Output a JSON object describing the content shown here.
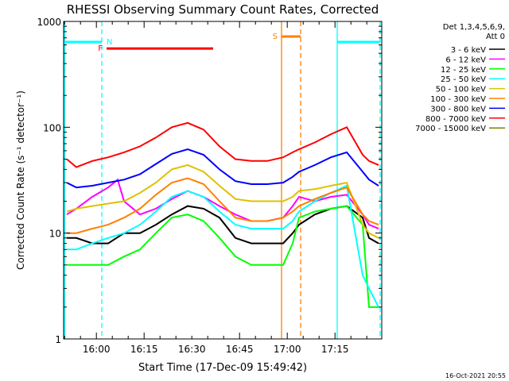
{
  "chart_data": {
    "type": "line",
    "title": "RHESSI Observing Summary Count Rates, Corrected",
    "xlabel": "Start Time (17-Dec-09 15:49:42)",
    "ylabel": "Corrected Count Rate (s⁻¹ detector⁻¹)",
    "x_units": "minutes after 15:49:42",
    "xlim": [
      0,
      100
    ],
    "ylim": [
      1,
      1000
    ],
    "yscale": "log",
    "x_ticks": [
      {
        "label": "16:00",
        "value": 10.3
      },
      {
        "label": "16:15",
        "value": 25.3
      },
      {
        "label": "16:30",
        "value": 40.3
      },
      {
        "label": "16:45",
        "value": 55.3
      },
      {
        "label": "17:00",
        "value": 70.3
      },
      {
        "label": "17:15",
        "value": 85.3
      }
    ],
    "y_ticks": [
      {
        "label": "1",
        "value": 1
      },
      {
        "label": "10",
        "value": 10
      },
      {
        "label": "100",
        "value": 100
      },
      {
        "label": "1000",
        "value": 1000
      }
    ],
    "legend": {
      "placement": "top-right",
      "header": [
        "Det 1,3,4,5,6,9,",
        "Att 0"
      ]
    },
    "series": [
      {
        "name": "3 - 6 keV",
        "color": "#000000",
        "x": [
          1,
          4,
          9,
          14,
          19,
          24,
          29,
          34,
          39,
          44,
          49,
          54,
          59,
          64,
          69,
          72,
          74,
          79,
          84,
          89,
          94,
          96,
          99
        ],
        "y": [
          9,
          9,
          8,
          8,
          10,
          10,
          12,
          15,
          18,
          17,
          14,
          9,
          8,
          8,
          8,
          10,
          12,
          15,
          17,
          18,
          14,
          9,
          8
        ]
      },
      {
        "name": "6 - 12 keV",
        "color": "#ff00ff",
        "x": [
          1,
          4,
          9,
          14,
          17,
          19,
          24,
          29,
          34,
          39,
          44,
          49,
          54,
          59,
          64,
          69,
          72,
          74,
          79,
          84,
          89,
          94,
          96,
          99
        ],
        "y": [
          15,
          17,
          22,
          27,
          32,
          20,
          15,
          17,
          21,
          25,
          22,
          18,
          15,
          13,
          13,
          14,
          18,
          22,
          20,
          22,
          23,
          15,
          12,
          11
        ]
      },
      {
        "name": "12 - 25 keV",
        "color": "#00ff00",
        "x": [
          1,
          4,
          9,
          14,
          19,
          24,
          29,
          34,
          39,
          44,
          49,
          54,
          59,
          64,
          69,
          72,
          74,
          79,
          84,
          89,
          94,
          96,
          99
        ],
        "y": [
          5,
          5,
          5,
          5,
          6,
          7,
          10,
          14,
          15,
          13,
          9,
          6,
          5,
          5,
          5,
          8,
          14,
          16,
          17,
          18,
          12,
          2,
          2
        ]
      },
      {
        "name": "25 - 50 keV",
        "color": "#00ffff",
        "x": [
          1,
          4,
          9,
          14,
          19,
          24,
          29,
          34,
          39,
          44,
          49,
          54,
          59,
          64,
          69,
          72,
          74,
          79,
          84,
          89,
          94,
          96,
          99
        ],
        "y": [
          7,
          7,
          8,
          9,
          10,
          12,
          16,
          22,
          25,
          22,
          16,
          12,
          11,
          11,
          11,
          13,
          16,
          20,
          24,
          28,
          4,
          3,
          2
        ]
      },
      {
        "name": "50 - 100 keV",
        "color": "#e0c000",
        "x": [
          1,
          4,
          9,
          14,
          19,
          24,
          29,
          34,
          39,
          44,
          49,
          54,
          59,
          64,
          69,
          72,
          74,
          79,
          84,
          89,
          94,
          96,
          99
        ],
        "y": [
          16,
          17,
          18,
          19,
          20,
          24,
          30,
          40,
          44,
          38,
          28,
          21,
          20,
          20,
          20,
          22,
          25,
          26,
          28,
          30,
          12,
          10,
          9
        ]
      },
      {
        "name": "100 - 300 keV",
        "color": "#ff8000",
        "x": [
          1,
          4,
          9,
          14,
          19,
          24,
          29,
          34,
          39,
          44,
          49,
          54,
          59,
          64,
          69,
          72,
          74,
          79,
          84,
          89,
          94,
          96,
          99
        ],
        "y": [
          10,
          10,
          11,
          12,
          14,
          17,
          23,
          30,
          33,
          29,
          20,
          14,
          13,
          13,
          14,
          16,
          18,
          21,
          24,
          27,
          15,
          13,
          12
        ]
      },
      {
        "name": "300 - 800 keV",
        "color": "#0000ff",
        "x": [
          1,
          4,
          9,
          14,
          19,
          24,
          29,
          34,
          39,
          44,
          49,
          54,
          59,
          64,
          69,
          72,
          74,
          79,
          84,
          89,
          94,
          96,
          99
        ],
        "y": [
          30,
          27,
          28,
          30,
          32,
          36,
          45,
          56,
          62,
          55,
          40,
          31,
          29,
          29,
          30,
          34,
          38,
          44,
          52,
          58,
          38,
          32,
          28
        ]
      },
      {
        "name": "800 - 7000 keV",
        "color": "#ff0000",
        "x": [
          1,
          4,
          9,
          14,
          19,
          24,
          29,
          34,
          39,
          44,
          49,
          54,
          59,
          64,
          69,
          72,
          74,
          79,
          84,
          89,
          94,
          96,
          99
        ],
        "y": [
          50,
          42,
          48,
          52,
          58,
          66,
          80,
          100,
          110,
          95,
          66,
          50,
          48,
          48,
          52,
          58,
          62,
          72,
          86,
          100,
          55,
          48,
          44
        ]
      },
      {
        "name": "7000 - 15000 keV",
        "color": "#808000",
        "x": [],
        "y": []
      }
    ],
    "flag_bars": [
      {
        "label": "N",
        "color": "#00ffff",
        "segments": [
          [
            0.5,
            12
          ],
          [
            86,
            99.5
          ]
        ],
        "y": 640
      },
      {
        "label": "F",
        "color": "#ff0000",
        "segments": [
          [
            13.5,
            47
          ]
        ],
        "y": 555
      },
      {
        "label": "S",
        "color": "#ff8000",
        "segments": [
          [
            68.5,
            74.5
          ]
        ],
        "y": 720
      }
    ],
    "vlines": [
      {
        "x": 0.3,
        "color": "#00ffff",
        "style": "solid"
      },
      {
        "x": 12,
        "color": "#00ffff",
        "style": "dashed"
      },
      {
        "x": 68.5,
        "color": "#ff8000",
        "style": "solid"
      },
      {
        "x": 74.5,
        "color": "#ff8000",
        "style": "dashed"
      },
      {
        "x": 86,
        "color": "#00ffff",
        "style": "solid"
      },
      {
        "x": 99.5,
        "color": "#00ffff",
        "style": "dashed"
      }
    ],
    "footer_timestamp": "16-Oct-2021 20:55"
  }
}
